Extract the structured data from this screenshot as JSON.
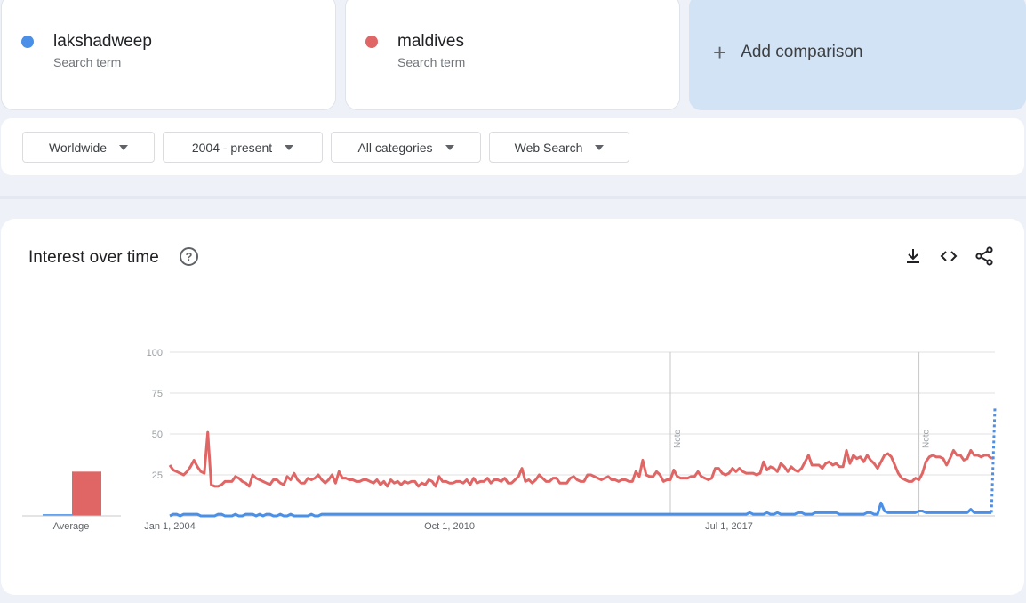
{
  "terms": [
    {
      "name": "lakshadweep",
      "sub": "Search term",
      "color": "#4a90e8"
    },
    {
      "name": "maldives",
      "sub": "Search term",
      "color": "#e06666"
    }
  ],
  "add_comparison": {
    "icon": "plus-icon",
    "label": "Add comparison"
  },
  "filters": {
    "region": "Worldwide",
    "time": "2004 - present",
    "category": "All categories",
    "property": "Web Search"
  },
  "chart_section": {
    "title": "Interest over time",
    "help_icon": "question-circle-icon",
    "actions": [
      "download-icon",
      "embed-icon",
      "share-icon"
    ]
  },
  "chart_data": {
    "type": "line",
    "title": "",
    "xlabel": "",
    "ylabel": "",
    "ylim": [
      0,
      100
    ],
    "yticks": [
      100,
      75,
      50,
      25
    ],
    "x_ticks": [
      {
        "t": 0,
        "label": "Jan 1, 2004"
      },
      {
        "t": 81,
        "label": "Oct 1, 2010"
      },
      {
        "t": 162,
        "label": "Jul 1, 2017"
      }
    ],
    "notes": [
      {
        "t": 145,
        "label": "Note"
      },
      {
        "t": 217,
        "label": "Note"
      }
    ],
    "time_axis": {
      "start": "Jan 1, 2004",
      "step": "month"
    },
    "average": {
      "label": "Average",
      "values": [
        1,
        27
      ]
    },
    "series": [
      {
        "name": "lakshadweep",
        "color": "#4a90e8",
        "values": [
          0,
          1,
          1,
          0,
          1,
          1,
          1,
          1,
          1,
          0,
          0,
          0,
          0,
          0,
          1,
          1,
          0,
          0,
          0,
          1,
          0,
          0,
          1,
          1,
          1,
          0,
          1,
          0,
          1,
          1,
          0,
          0,
          1,
          0,
          0,
          1,
          0,
          0,
          0,
          0,
          0,
          1,
          0,
          0,
          1,
          1,
          1,
          1,
          1,
          1,
          1,
          1,
          1,
          1,
          1,
          1,
          1,
          1,
          1,
          1,
          1,
          1,
          1,
          1,
          1,
          1,
          1,
          1,
          1,
          1,
          1,
          1,
          1,
          1,
          1,
          1,
          1,
          1,
          1,
          1,
          1,
          1,
          1,
          1,
          1,
          1,
          1,
          1,
          1,
          1,
          1,
          1,
          1,
          1,
          1,
          1,
          1,
          1,
          1,
          1,
          1,
          1,
          1,
          1,
          1,
          1,
          1,
          1,
          1,
          1,
          1,
          1,
          1,
          1,
          1,
          1,
          1,
          1,
          1,
          1,
          1,
          1,
          1,
          1,
          1,
          1,
          1,
          1,
          1,
          1,
          1,
          1,
          1,
          1,
          1,
          1,
          1,
          1,
          1,
          1,
          1,
          1,
          1,
          1,
          1,
          1,
          1,
          1,
          1,
          1,
          1,
          1,
          1,
          1,
          1,
          1,
          1,
          1,
          1,
          1,
          1,
          1,
          1,
          1,
          1,
          1,
          1,
          1,
          2,
          1,
          1,
          1,
          1,
          2,
          1,
          1,
          2,
          1,
          1,
          1,
          1,
          1,
          2,
          2,
          1,
          1,
          1,
          2,
          2,
          2,
          2,
          2,
          2,
          2,
          1,
          1,
          1,
          1,
          1,
          1,
          1,
          1,
          2,
          2,
          1,
          1,
          8,
          3,
          2,
          2,
          2,
          2,
          2,
          2,
          2,
          2,
          2,
          3,
          3,
          2,
          2,
          2,
          2,
          2,
          2,
          2,
          2,
          2,
          2,
          2,
          2,
          2,
          4,
          2,
          2,
          2,
          2,
          2,
          2,
          66
        ]
      },
      {
        "name": "maldives",
        "color": "#e06666",
        "values": [
          31,
          28,
          27,
          26,
          25,
          27,
          30,
          34,
          30,
          27,
          26,
          51,
          19,
          18,
          18,
          19,
          21,
          21,
          21,
          24,
          23,
          21,
          20,
          18,
          25,
          23,
          22,
          21,
          20,
          19,
          22,
          22,
          20,
          19,
          24,
          22,
          26,
          22,
          20,
          20,
          23,
          22,
          23,
          25,
          22,
          20,
          22,
          25,
          20,
          27,
          23,
          23,
          22,
          22,
          21,
          21,
          22,
          22,
          21,
          20,
          22,
          19,
          21,
          18,
          22,
          20,
          21,
          19,
          21,
          20,
          21,
          21,
          18,
          20,
          19,
          22,
          21,
          18,
          24,
          21,
          21,
          20,
          20,
          21,
          21,
          20,
          22,
          19,
          23,
          20,
          21,
          21,
          23,
          20,
          22,
          22,
          21,
          23,
          20,
          20,
          22,
          24,
          29,
          21,
          22,
          20,
          22,
          25,
          23,
          21,
          21,
          23,
          23,
          20,
          20,
          20,
          23,
          24,
          22,
          21,
          21,
          25,
          25,
          24,
          23,
          22,
          23,
          24,
          22,
          22,
          21,
          22,
          22,
          21,
          21,
          27,
          24,
          34,
          25,
          24,
          24,
          27,
          25,
          21,
          22,
          22,
          28,
          24,
          23,
          23,
          23,
          24,
          24,
          27,
          24,
          23,
          22,
          23,
          29,
          29,
          26,
          25,
          26,
          29,
          27,
          29,
          27,
          26,
          26,
          26,
          25,
          26,
          33,
          28,
          30,
          29,
          27,
          32,
          30,
          27,
          30,
          28,
          27,
          29,
          33,
          37,
          31,
          31,
          31,
          29,
          32,
          33,
          31,
          32,
          30,
          30,
          40,
          32,
          37,
          35,
          36,
          33,
          37,
          34,
          32,
          29,
          33,
          37,
          38,
          36,
          31,
          26,
          23,
          22,
          21,
          21,
          23,
          22,
          26,
          33,
          36,
          37,
          36,
          36,
          35,
          31,
          35,
          40,
          37,
          37,
          34,
          35,
          40,
          37,
          37,
          36,
          37,
          37,
          35,
          36,
          34,
          34,
          32,
          29,
          31,
          33,
          38,
          34,
          33,
          33,
          33,
          33,
          34,
          30,
          31,
          35,
          28,
          28
        ]
      }
    ]
  }
}
